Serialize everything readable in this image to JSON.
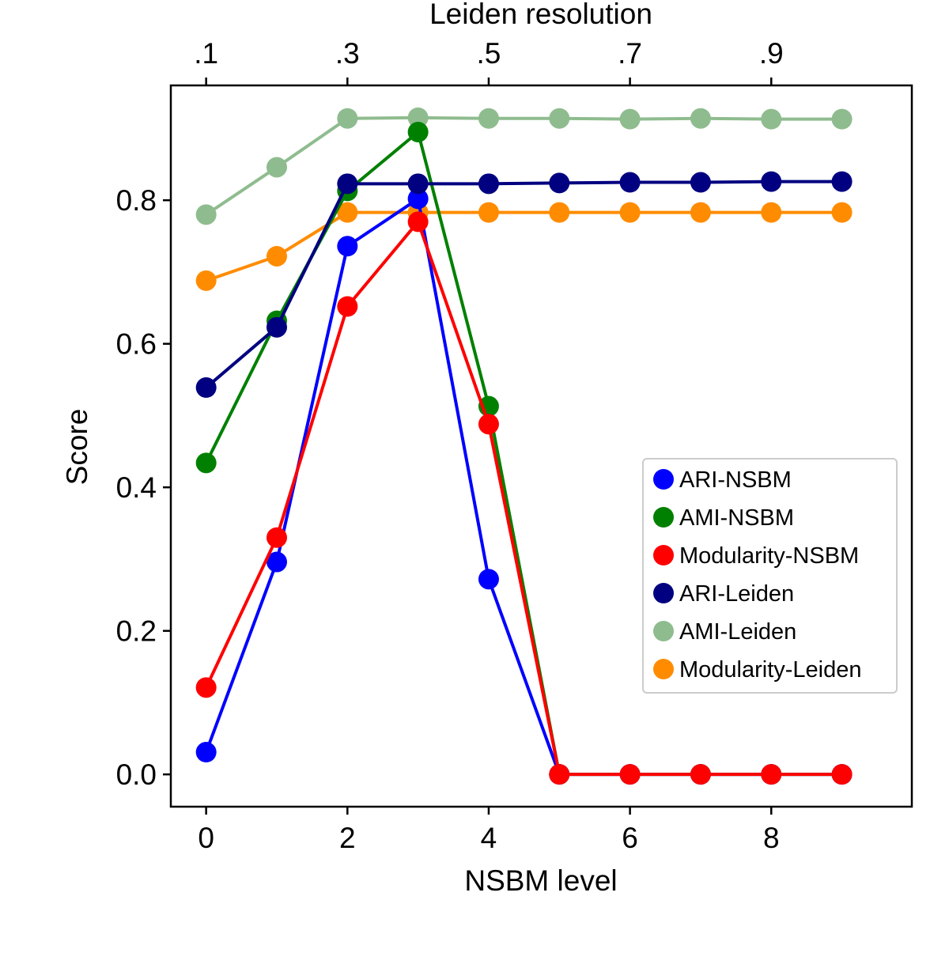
{
  "chart_data": {
    "type": "line",
    "title": "",
    "xlabel": "NSBM level",
    "ylabel": "Score",
    "x2label": "Leiden resolution",
    "xlim": [
      -0.5,
      9.99
    ],
    "ylim": [
      -0.045,
      0.96
    ],
    "xticks": [
      0,
      2,
      4,
      6,
      8
    ],
    "xtick_labels": [
      "0",
      "2",
      "4",
      "6",
      "8"
    ],
    "x2ticks": [
      0,
      2,
      4,
      6,
      8
    ],
    "x2tick_labels": [
      ".1",
      ".3",
      ".5",
      ".7",
      ".9"
    ],
    "yticks": [
      0.0,
      0.2,
      0.4,
      0.6,
      0.8
    ],
    "ytick_labels": [
      "0.0",
      "0.2",
      "0.4",
      "0.6",
      "0.8"
    ],
    "grid": false,
    "legend_position": "center-right",
    "x": [
      0,
      1,
      2,
      3,
      4,
      5,
      6,
      7,
      8,
      9
    ],
    "series": [
      {
        "name": "AMI-Leiden",
        "color": "#8fbc8f",
        "values": [
          0.78,
          0.846,
          0.914,
          0.915,
          0.914,
          0.914,
          0.913,
          0.914,
          0.913,
          0.913
        ]
      },
      {
        "name": "Modularity-Leiden",
        "color": "#ff8c00",
        "values": [
          0.688,
          0.722,
          0.783,
          0.783,
          0.783,
          0.783,
          0.783,
          0.783,
          0.783,
          0.783
        ]
      },
      {
        "name": "AMI-NSBM",
        "color": "#008000",
        "values": [
          0.434,
          0.632,
          0.813,
          0.895,
          0.513,
          0.0,
          0.0,
          0.0,
          0.0,
          0.0
        ]
      },
      {
        "name": "ARI-NSBM",
        "color": "#0000ff",
        "values": [
          0.031,
          0.296,
          0.736,
          0.802,
          0.272,
          0.0,
          0.0,
          0.0,
          0.0,
          0.0
        ]
      },
      {
        "name": "ARI-Leiden",
        "color": "#000080",
        "values": [
          0.539,
          0.623,
          0.823,
          0.823,
          0.823,
          0.824,
          0.825,
          0.825,
          0.826,
          0.826
        ]
      },
      {
        "name": "Modularity-NSBM",
        "color": "#ff0000",
        "values": [
          0.121,
          0.33,
          0.652,
          0.77,
          0.488,
          0.0,
          0.0,
          0.0,
          0.0,
          0.0
        ]
      }
    ],
    "legend_order": [
      "ARI-NSBM",
      "AMI-NSBM",
      "Modularity-NSBM",
      "ARI-Leiden",
      "AMI-Leiden",
      "Modularity-Leiden"
    ]
  }
}
